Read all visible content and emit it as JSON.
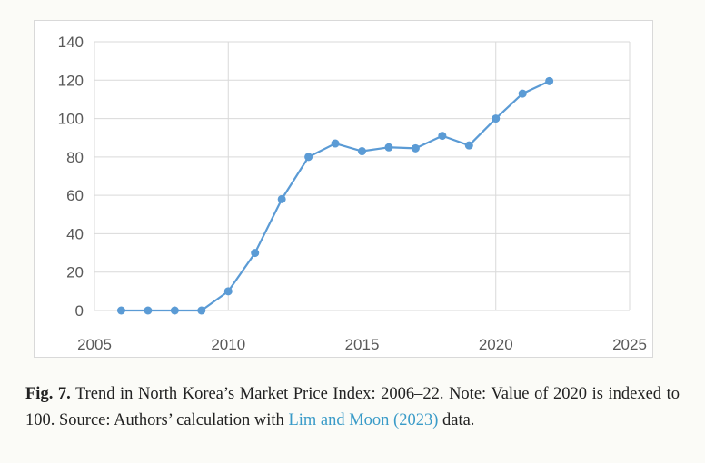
{
  "chart_data": {
    "type": "line",
    "x": [
      2006,
      2007,
      2008,
      2009,
      2010,
      2011,
      2012,
      2013,
      2014,
      2015,
      2016,
      2017,
      2018,
      2019,
      2020,
      2021,
      2022
    ],
    "series": [
      {
        "values": [
          0,
          0,
          0,
          0,
          10,
          30,
          58,
          80,
          87,
          83,
          85,
          84.5,
          91,
          86,
          100,
          113,
          119.5
        ]
      }
    ],
    "xlim": [
      2005,
      2025
    ],
    "ylim": [
      0,
      140
    ],
    "xticks": [
      "2005",
      "2010",
      "2015",
      "2020",
      "2025"
    ],
    "yticks": [
      "0",
      "20",
      "40",
      "60",
      "80",
      "100",
      "120",
      "140"
    ],
    "grid": true,
    "legend": "none",
    "line_color": "#5b9bd5",
    "title": "",
    "xlabel": "",
    "ylabel": ""
  },
  "caption": {
    "label": "Fig. 7.",
    "text_before": " Trend in North Korea’s Market Price Index: 2006–22. Note: Value of 2020 is indexed to 100. Source: Authors’ calculation with ",
    "citation": "Lim and Moon (2023)",
    "text_after": " data.",
    "citation_color": "#3a9bc8"
  }
}
